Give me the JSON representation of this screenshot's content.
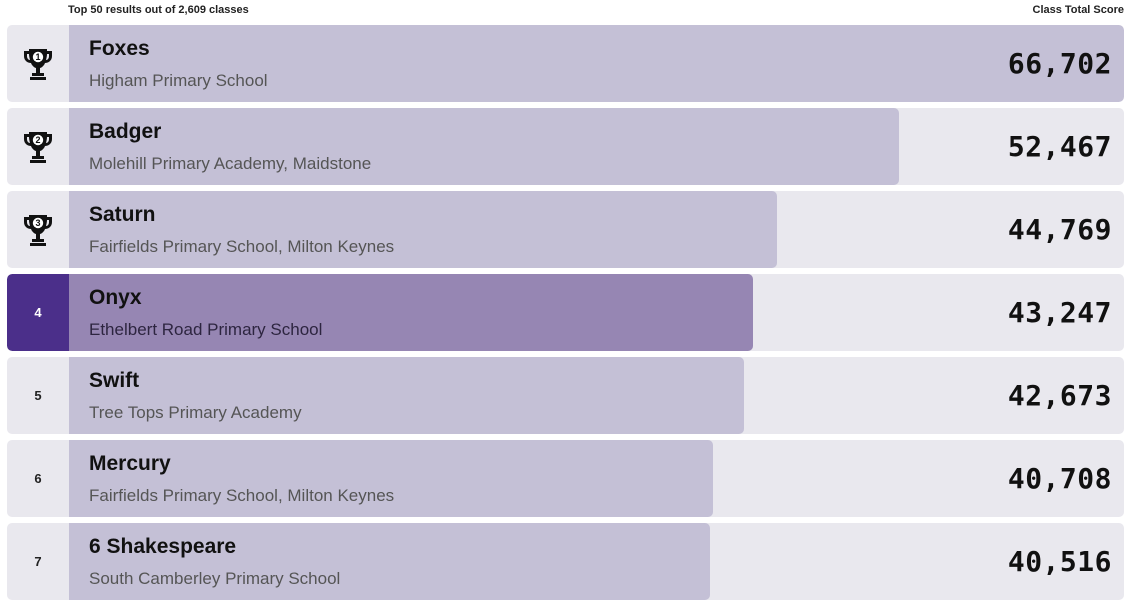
{
  "header": {
    "results_summary": "Top 50 results out of 2,609 classes",
    "score_column": "Class Total Score"
  },
  "max_score": 66702,
  "rows": [
    {
      "rank": "1",
      "class_name": "Foxes",
      "school": "Higham Primary School",
      "score": "66,702",
      "score_value": 66702,
      "trophy": true,
      "highlight": false
    },
    {
      "rank": "2",
      "class_name": "Badger",
      "school": "Molehill Primary Academy, Maidstone",
      "score": "52,467",
      "score_value": 52467,
      "trophy": true,
      "highlight": false
    },
    {
      "rank": "3",
      "class_name": "Saturn",
      "school": "Fairfields Primary School, Milton Keynes",
      "score": "44,769",
      "score_value": 44769,
      "trophy": true,
      "highlight": false
    },
    {
      "rank": "4",
      "class_name": "Onyx",
      "school": "Ethelbert Road Primary School",
      "score": "43,247",
      "score_value": 43247,
      "trophy": false,
      "highlight": true
    },
    {
      "rank": "5",
      "class_name": "Swift",
      "school": "Tree Tops Primary Academy",
      "score": "42,673",
      "score_value": 42673,
      "trophy": false,
      "highlight": false
    },
    {
      "rank": "6",
      "class_name": "Mercury",
      "school": "Fairfields Primary School, Milton Keynes",
      "score": "40,708",
      "score_value": 40708,
      "trophy": false,
      "highlight": false
    },
    {
      "rank": "7",
      "class_name": "6 Shakespeare",
      "school": "South Camberley Primary School",
      "score": "40,516",
      "score_value": 40516,
      "trophy": false,
      "highlight": false
    }
  ],
  "colors": {
    "row_background": "#e9e8ee",
    "bar": "#c4c0d6",
    "highlight_rank": "#4b2f8a",
    "highlight_bar": "#9686b3"
  }
}
